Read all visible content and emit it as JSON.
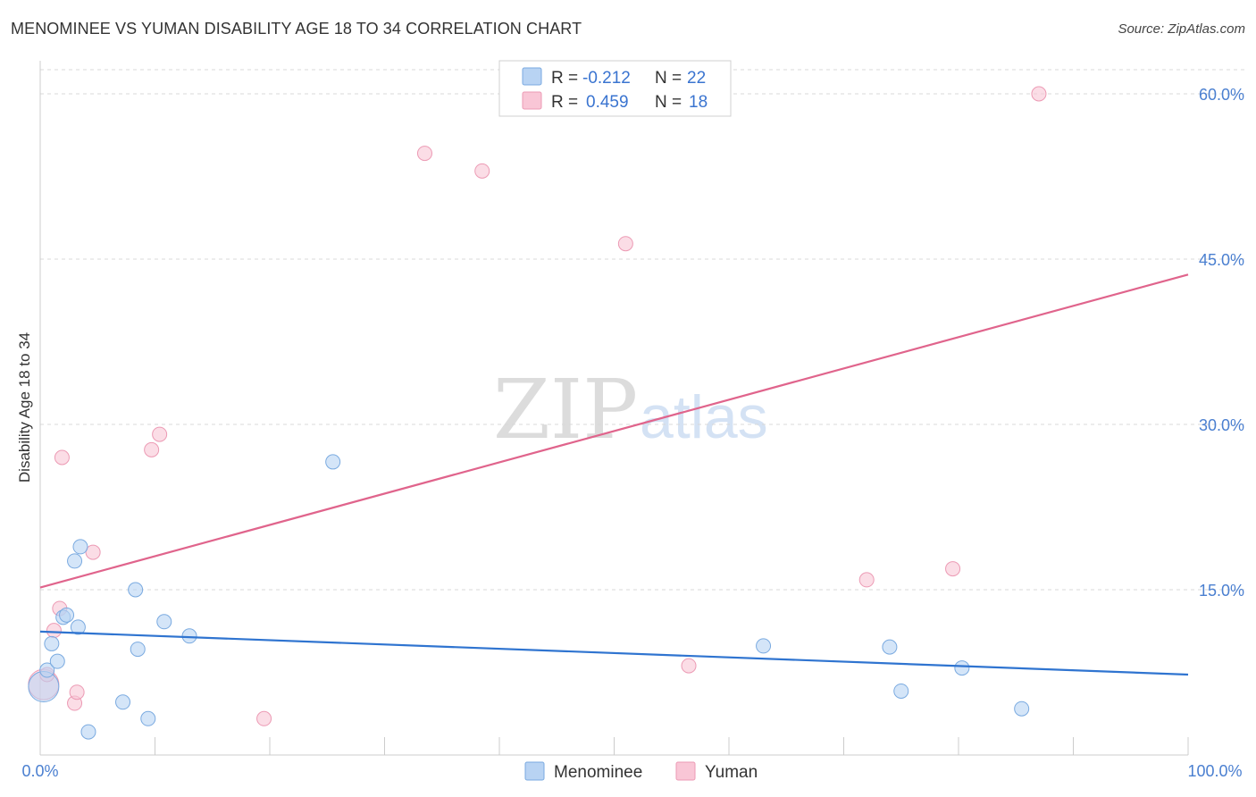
{
  "header": {
    "title": "MENOMINEE VS YUMAN DISABILITY AGE 18 TO 34 CORRELATION CHART",
    "source": "Source: ZipAtlas.com"
  },
  "legend": {
    "series": [
      {
        "r_label": "R =",
        "r_value": "-0.212",
        "n_label": "N =",
        "n_value": "22"
      },
      {
        "r_label": "R =",
        "r_value": "0.459",
        "n_label": "N =",
        "n_value": "18"
      }
    ]
  },
  "watermark": {
    "part1": "ZIP",
    "part2": "atlas"
  },
  "colors": {
    "menominee_fill": "#b8d3f3",
    "menominee_stroke": "#7aaae0",
    "menominee_line": "#2f74d0",
    "yuman_fill": "#f9c6d6",
    "yuman_stroke": "#ec9ab4",
    "yuman_line": "#e0648c",
    "grid": "#d8d8d8",
    "tick_text": "#4a7fd0"
  },
  "chart_data": {
    "type": "scatter",
    "title": "MENOMINEE VS YUMAN DISABILITY AGE 18 TO 34 CORRELATION CHART",
    "xlabel": "",
    "ylabel": "Disability Age 18 to 34",
    "xlim": [
      0,
      100
    ],
    "ylim": [
      0,
      63
    ],
    "x_tick_labels": [
      "0.0%",
      "100.0%"
    ],
    "y_ticks": [
      15,
      30,
      45,
      60
    ],
    "y_tick_labels": [
      "15.0%",
      "30.0%",
      "45.0%",
      "60.0%"
    ],
    "grid": true,
    "legend_position": "bottom",
    "series": [
      {
        "name": "Menominee",
        "r": -0.212,
        "n": 22,
        "points": [
          {
            "x": 0.3,
            "y": 6.2,
            "big": true
          },
          {
            "x": 0.6,
            "y": 7.7
          },
          {
            "x": 1.0,
            "y": 10.1
          },
          {
            "x": 1.5,
            "y": 8.5
          },
          {
            "x": 2.0,
            "y": 12.5
          },
          {
            "x": 2.3,
            "y": 12.7
          },
          {
            "x": 3.0,
            "y": 17.6
          },
          {
            "x": 3.3,
            "y": 11.6
          },
          {
            "x": 3.5,
            "y": 18.9
          },
          {
            "x": 4.2,
            "y": 2.1
          },
          {
            "x": 7.2,
            "y": 4.8
          },
          {
            "x": 8.3,
            "y": 15.0
          },
          {
            "x": 8.5,
            "y": 9.6
          },
          {
            "x": 9.4,
            "y": 3.3
          },
          {
            "x": 10.8,
            "y": 12.1
          },
          {
            "x": 13.0,
            "y": 10.8
          },
          {
            "x": 25.5,
            "y": 26.6
          },
          {
            "x": 63.0,
            "y": 9.9
          },
          {
            "x": 74.0,
            "y": 9.8
          },
          {
            "x": 75.0,
            "y": 5.8
          },
          {
            "x": 80.3,
            "y": 7.9
          },
          {
            "x": 85.5,
            "y": 4.2
          }
        ],
        "trend": {
          "x1": 0,
          "y1": 11.2,
          "x2": 100,
          "y2": 7.3
        }
      },
      {
        "name": "Yuman",
        "r": 0.459,
        "n": 18,
        "points": [
          {
            "x": 0.3,
            "y": 6.4,
            "big": true
          },
          {
            "x": 0.6,
            "y": 7.3
          },
          {
            "x": 1.2,
            "y": 11.3
          },
          {
            "x": 1.7,
            "y": 13.3
          },
          {
            "x": 1.9,
            "y": 27.0
          },
          {
            "x": 3.0,
            "y": 4.7
          },
          {
            "x": 3.2,
            "y": 5.7
          },
          {
            "x": 4.6,
            "y": 18.4
          },
          {
            "x": 9.7,
            "y": 27.7
          },
          {
            "x": 10.4,
            "y": 29.1
          },
          {
            "x": 19.5,
            "y": 3.3
          },
          {
            "x": 33.5,
            "y": 54.6
          },
          {
            "x": 38.5,
            "y": 53.0
          },
          {
            "x": 51.0,
            "y": 46.4
          },
          {
            "x": 56.5,
            "y": 8.1
          },
          {
            "x": 72.0,
            "y": 15.9
          },
          {
            "x": 79.5,
            "y": 16.9
          },
          {
            "x": 87.0,
            "y": 60.0
          }
        ],
        "trend": {
          "x1": 0,
          "y1": 15.2,
          "x2": 100,
          "y2": 43.6
        }
      }
    ]
  }
}
